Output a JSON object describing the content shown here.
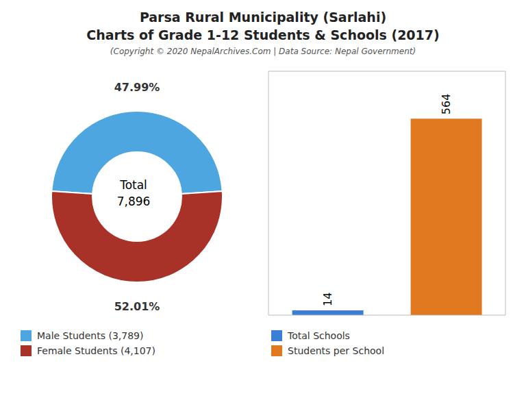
{
  "chart_data": [
    {
      "type": "donut",
      "title": [
        "Parsa Rural Municipality (Sarlahi)",
        "Charts of Grade 1-12 Students & Schools (2017)"
      ],
      "subtitle": "(Copyright © 2020 NepalArchives.Com | Data Source: Nepal Government)",
      "categories": [
        "Male Students (3,789)",
        "Female Students (4,107)"
      ],
      "values": [
        47.99,
        52.01
      ],
      "value_labels": [
        "47.99%",
        "52.01%"
      ],
      "colors": [
        "#4da6e0",
        "#a83228"
      ],
      "annotations": [
        "Total",
        "7,896"
      ],
      "data_labels": true,
      "legend": "bottom"
    },
    {
      "type": "bar",
      "categories": [
        "Total Schools",
        "Students per School"
      ],
      "values": [
        14,
        564
      ],
      "colors": [
        "#3a7fd5",
        "#e07820"
      ],
      "ylim": [
        0,
        700
      ],
      "tick_labels": false,
      "data_labels": true,
      "legend": "bottom"
    }
  ]
}
